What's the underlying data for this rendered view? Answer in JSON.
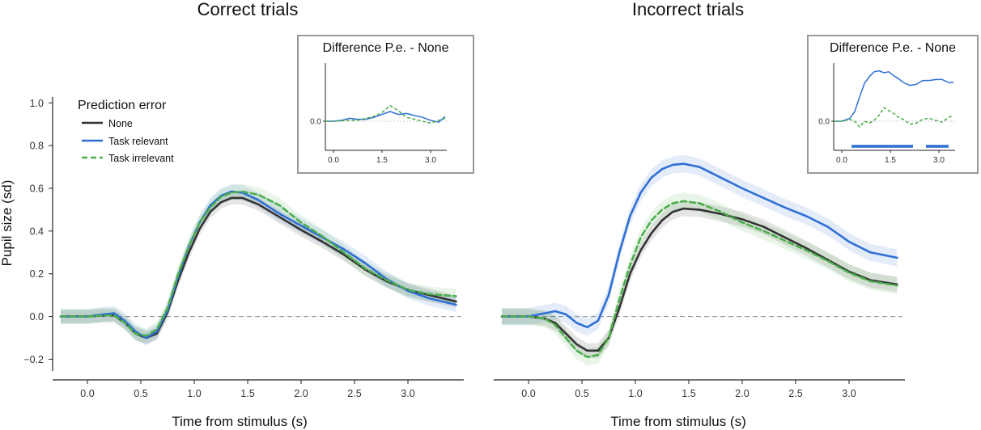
{
  "colors": {
    "none": "#333333",
    "task_relevant": "#2f6fd4",
    "task_irrelevant": "#4cae4c",
    "zero_line": "#999999",
    "inset_border": "#999999"
  },
  "legend": {
    "title": "Prediction error",
    "placement": "top-left of left panel",
    "entries": [
      {
        "label": "None",
        "style": "solid",
        "color_key": "none"
      },
      {
        "label": "Task relevant",
        "style": "solid",
        "color_key": "task_relevant"
      },
      {
        "label": "Task irrelevant",
        "style": "dashed",
        "color_key": "task_irrelevant"
      }
    ]
  },
  "chart_data": [
    {
      "type": "line",
      "title": "Correct trials",
      "xlabel": "Time from stimulus (s)",
      "ylabel": "Pupil size (sd)",
      "xlim": [
        -0.25,
        3.5
      ],
      "ylim": [
        -0.24,
        1.02
      ],
      "x_ticks": [
        "0.0",
        "0.5",
        "1.0",
        "1.5",
        "2.0",
        "2.5",
        "3.0"
      ],
      "x_tick_values": [
        0,
        0.5,
        1,
        1.5,
        2,
        2.5,
        3
      ],
      "y_ticks": [
        "−0.2",
        "0.0",
        "0.2",
        "0.4",
        "0.6",
        "0.8",
        "1.0"
      ],
      "y_tick_values": [
        -0.2,
        0,
        0.2,
        0.4,
        0.6,
        0.8,
        1.0
      ],
      "zero_line": true,
      "x": [
        -0.25,
        0,
        0.15,
        0.25,
        0.35,
        0.45,
        0.55,
        0.65,
        0.75,
        0.85,
        0.95,
        1.05,
        1.15,
        1.25,
        1.35,
        1.45,
        1.6,
        1.8,
        2.0,
        2.2,
        2.4,
        2.6,
        2.8,
        3.0,
        3.2,
        3.45
      ],
      "series": [
        {
          "name": "None",
          "color_key": "none",
          "dash": "solid",
          "values": [
            0,
            0,
            0.005,
            0.005,
            -0.03,
            -0.08,
            -0.1,
            -0.08,
            0.02,
            0.17,
            0.3,
            0.41,
            0.49,
            0.535,
            0.555,
            0.555,
            0.525,
            0.465,
            0.405,
            0.35,
            0.29,
            0.22,
            0.165,
            0.125,
            0.1,
            0.07
          ],
          "band": 0.03
        },
        {
          "name": "Task relevant",
          "color_key": "task_relevant",
          "dash": "solid",
          "values": [
            0,
            0,
            0.01,
            0.015,
            -0.02,
            -0.07,
            -0.1,
            -0.07,
            0.03,
            0.19,
            0.33,
            0.44,
            0.52,
            0.565,
            0.585,
            0.58,
            0.545,
            0.48,
            0.425,
            0.37,
            0.315,
            0.25,
            0.175,
            0.12,
            0.085,
            0.055
          ],
          "band": 0.035
        },
        {
          "name": "Task irrelevant",
          "color_key": "task_irrelevant",
          "dash": "dashed",
          "values": [
            0,
            0,
            0.005,
            0.005,
            -0.03,
            -0.08,
            -0.09,
            -0.06,
            0.04,
            0.2,
            0.33,
            0.44,
            0.51,
            0.56,
            0.58,
            0.585,
            0.57,
            0.52,
            0.44,
            0.375,
            0.3,
            0.225,
            0.17,
            0.125,
            0.105,
            0.095
          ],
          "band": 0.035
        }
      ],
      "inset": {
        "title": "Difference P.e. - None",
        "x_ticks": [
          "0.0",
          "1.5",
          "3.0"
        ],
        "x_tick_values": [
          0,
          1.5,
          3
        ],
        "y_ticks": [
          "0.0"
        ],
        "xlim": [
          -0.25,
          3.5
        ],
        "ylim": [
          -0.3,
          0.6
        ],
        "x": [
          -0.25,
          0,
          0.25,
          0.5,
          0.75,
          1.0,
          1.25,
          1.5,
          1.75,
          2.0,
          2.25,
          2.5,
          2.75,
          3.0,
          3.25,
          3.45
        ],
        "series": [
          {
            "name": "Task relevant",
            "color_key": "task_relevant",
            "dash": "solid",
            "values": [
              0,
              0,
              0.01,
              0.03,
              0.02,
              0.02,
              0.04,
              0.07,
              0.1,
              0.07,
              0.08,
              0.06,
              0.04,
              0.01,
              -0.01,
              0.05
            ]
          },
          {
            "name": "Task irrelevant",
            "color_key": "task_irrelevant",
            "dash": "dashed",
            "values": [
              0,
              0,
              0.005,
              0.01,
              0.01,
              0.03,
              0.05,
              0.09,
              0.16,
              0.11,
              0.04,
              0.02,
              0.0,
              -0.02,
              0.01,
              0.03
            ]
          }
        ],
        "significance_bars": []
      }
    },
    {
      "type": "line",
      "title": "Incorrect trials",
      "xlabel": "Time from stimulus (s)",
      "ylabel": "",
      "xlim": [
        -0.25,
        3.5
      ],
      "ylim": [
        -0.24,
        1.02
      ],
      "x_ticks": [
        "0.0",
        "0.5",
        "1.0",
        "1.5",
        "2.0",
        "2.5",
        "3.0"
      ],
      "x_tick_values": [
        0,
        0.5,
        1,
        1.5,
        2,
        2.5,
        3
      ],
      "zero_line": true,
      "x": [
        -0.25,
        0,
        0.15,
        0.25,
        0.35,
        0.45,
        0.55,
        0.65,
        0.75,
        0.85,
        0.95,
        1.05,
        1.15,
        1.25,
        1.35,
        1.45,
        1.6,
        1.8,
        2.0,
        2.2,
        2.4,
        2.6,
        2.8,
        3.0,
        3.2,
        3.45
      ],
      "series": [
        {
          "name": "None",
          "color_key": "none",
          "dash": "solid",
          "values": [
            0,
            0,
            -0.01,
            -0.03,
            -0.08,
            -0.13,
            -0.16,
            -0.16,
            -0.1,
            0.04,
            0.2,
            0.31,
            0.39,
            0.45,
            0.49,
            0.505,
            0.5,
            0.48,
            0.455,
            0.42,
            0.37,
            0.32,
            0.265,
            0.21,
            0.17,
            0.15
          ],
          "band": 0.035
        },
        {
          "name": "Task relevant",
          "color_key": "task_relevant",
          "dash": "solid",
          "values": [
            0,
            0,
            0.015,
            0.025,
            0.01,
            -0.03,
            -0.05,
            -0.02,
            0.1,
            0.3,
            0.47,
            0.58,
            0.65,
            0.69,
            0.71,
            0.715,
            0.7,
            0.65,
            0.6,
            0.555,
            0.51,
            0.47,
            0.42,
            0.35,
            0.3,
            0.275
          ],
          "band": 0.04
        },
        {
          "name": "Task irrelevant",
          "color_key": "task_irrelevant",
          "dash": "dashed",
          "values": [
            0,
            0,
            -0.01,
            -0.04,
            -0.1,
            -0.16,
            -0.19,
            -0.18,
            -0.1,
            0.08,
            0.24,
            0.37,
            0.45,
            0.5,
            0.53,
            0.54,
            0.53,
            0.49,
            0.44,
            0.4,
            0.355,
            0.31,
            0.26,
            0.205,
            0.165,
            0.145
          ],
          "band": 0.04
        }
      ],
      "inset": {
        "title": "Difference P.e. - None",
        "x_ticks": [
          "0.0",
          "1.5",
          "3.0"
        ],
        "x_tick_values": [
          0,
          1.5,
          3
        ],
        "y_ticks": [
          "0.0"
        ],
        "xlim": [
          -0.25,
          3.5
        ],
        "ylim": [
          -0.3,
          0.6
        ],
        "x": [
          -0.25,
          0,
          0.25,
          0.4,
          0.55,
          0.7,
          0.85,
          1.0,
          1.15,
          1.3,
          1.45,
          1.6,
          1.75,
          1.9,
          2.1,
          2.3,
          2.5,
          2.7,
          2.9,
          3.1,
          3.3,
          3.45
        ],
        "series": [
          {
            "name": "Task relevant",
            "color_key": "task_relevant",
            "dash": "solid",
            "values": [
              0,
              0,
              0.03,
              0.1,
              0.25,
              0.39,
              0.46,
              0.51,
              0.52,
              0.5,
              0.51,
              0.47,
              0.44,
              0.4,
              0.37,
              0.38,
              0.42,
              0.42,
              0.43,
              0.43,
              0.4,
              0.4
            ]
          },
          {
            "name": "Task irrelevant",
            "color_key": "task_irrelevant",
            "dash": "dashed",
            "values": [
              0,
              0,
              0.02,
              0.0,
              -0.06,
              0.0,
              -0.02,
              0.01,
              0.06,
              0.14,
              0.11,
              0.08,
              0.04,
              0.02,
              -0.03,
              -0.02,
              0.02,
              0.03,
              0.01,
              -0.01,
              0.04,
              0.06
            ]
          }
        ],
        "significance_bars": [
          [
            0.3,
            2.2
          ],
          [
            2.6,
            3.3
          ]
        ]
      }
    }
  ]
}
